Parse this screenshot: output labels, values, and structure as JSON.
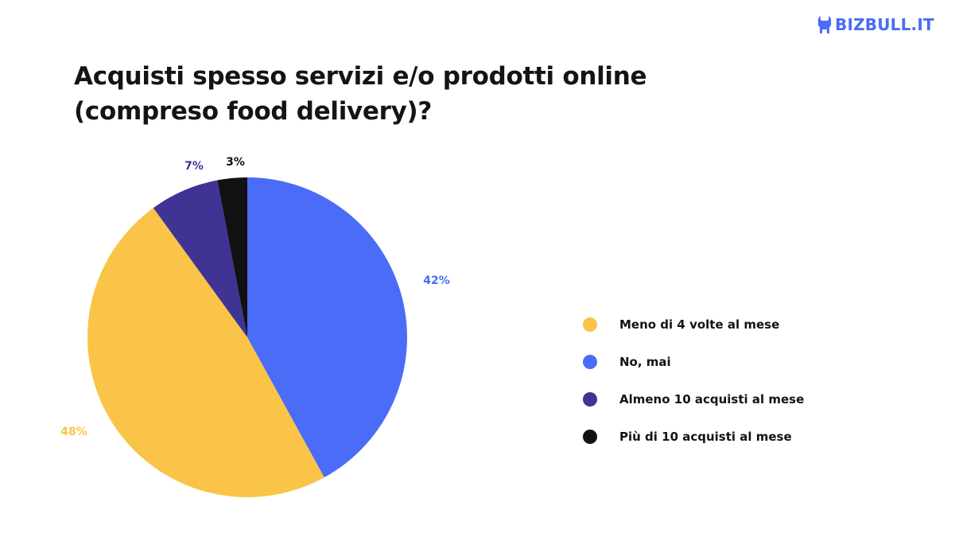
{
  "logo": {
    "text": "BIZBULL.IT",
    "icon": "bull-icon",
    "color": "#4a6cf7"
  },
  "title_lines": [
    "Acquisti spesso servizi e/o prodotti online",
    "(compreso food delivery)?"
  ],
  "chart_data": {
    "type": "pie",
    "title": "Acquisti spesso servizi e/o prodotti online (compreso food delivery)?",
    "start_angle_deg": 0,
    "direction": "clockwise",
    "legend_position": "right",
    "slices": [
      {
        "label": "No, mai",
        "value": 42,
        "display": "42%",
        "color": "#4a6cf7"
      },
      {
        "label": "Meno di 4 volte al mese",
        "value": 48,
        "display": "48%",
        "color": "#f9c447"
      },
      {
        "label": "Almeno 10 acquisti al mese",
        "value": 7,
        "display": "7%",
        "color": "#3f3494"
      },
      {
        "label": "Più di 10 acquisti al mese",
        "value": 3,
        "display": "3%",
        "color": "#111111"
      }
    ],
    "legend_order": [
      1,
      0,
      2,
      3
    ]
  }
}
